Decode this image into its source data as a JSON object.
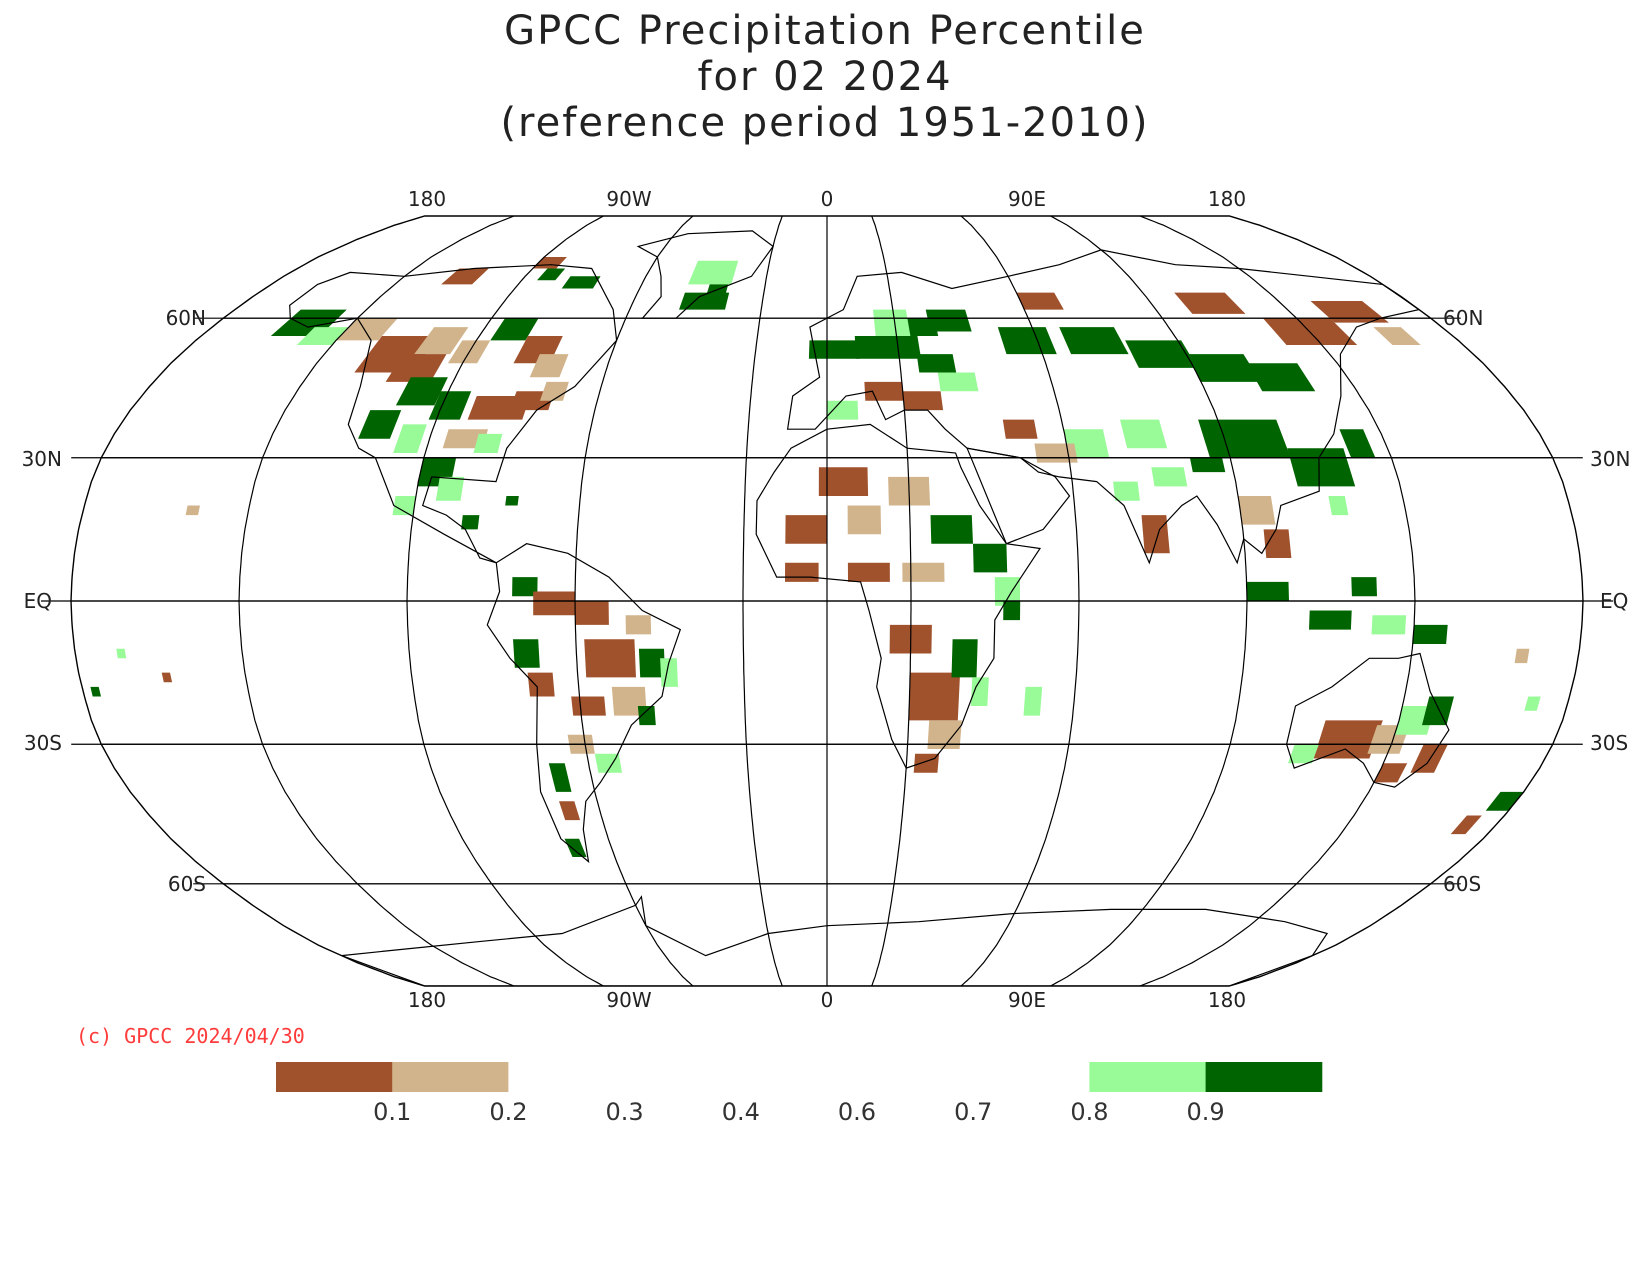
{
  "title": {
    "line1": "GPCC Precipitation Percentile",
    "line2": "for 02 2024",
    "line3": "(reference period 1951-2010)"
  },
  "map": {
    "projection": "robinson",
    "lon_labels_top": [
      "180",
      "90W",
      "0",
      "90E",
      "180"
    ],
    "lon_labels_bottom": [
      "180",
      "90W",
      "0",
      "90E",
      "180"
    ],
    "lat_labels_left": [
      "60N",
      "30N",
      "EQ",
      "30S",
      "60S"
    ],
    "lat_labels_right": [
      "60N",
      "30N",
      "EQ",
      "30S",
      "60S"
    ],
    "colors": {
      "below_0.1": "#a0522d",
      "0.1_0.2": "#d2b48c",
      "0.8_0.9": "#98fb98",
      "above_0.9": "#006400",
      "coast": "#000000",
      "grid": "#000000"
    }
  },
  "copyright": "(c) GPCC 2024/04/30",
  "legend": {
    "tick_labels": [
      "0.1",
      "0.2",
      "0.3",
      "0.4",
      "0.6",
      "0.7",
      "0.8",
      "0.9"
    ],
    "swatches": [
      {
        "color": "#a0522d"
      },
      {
        "color": "#d2b48c"
      },
      {
        "color": "#ffffff"
      },
      {
        "color": "#ffffff"
      },
      {
        "color": "#ffffff"
      },
      {
        "color": "#ffffff"
      },
      {
        "color": "#ffffff"
      },
      {
        "color": "#98fb98"
      },
      {
        "color": "#006400"
      }
    ]
  }
}
